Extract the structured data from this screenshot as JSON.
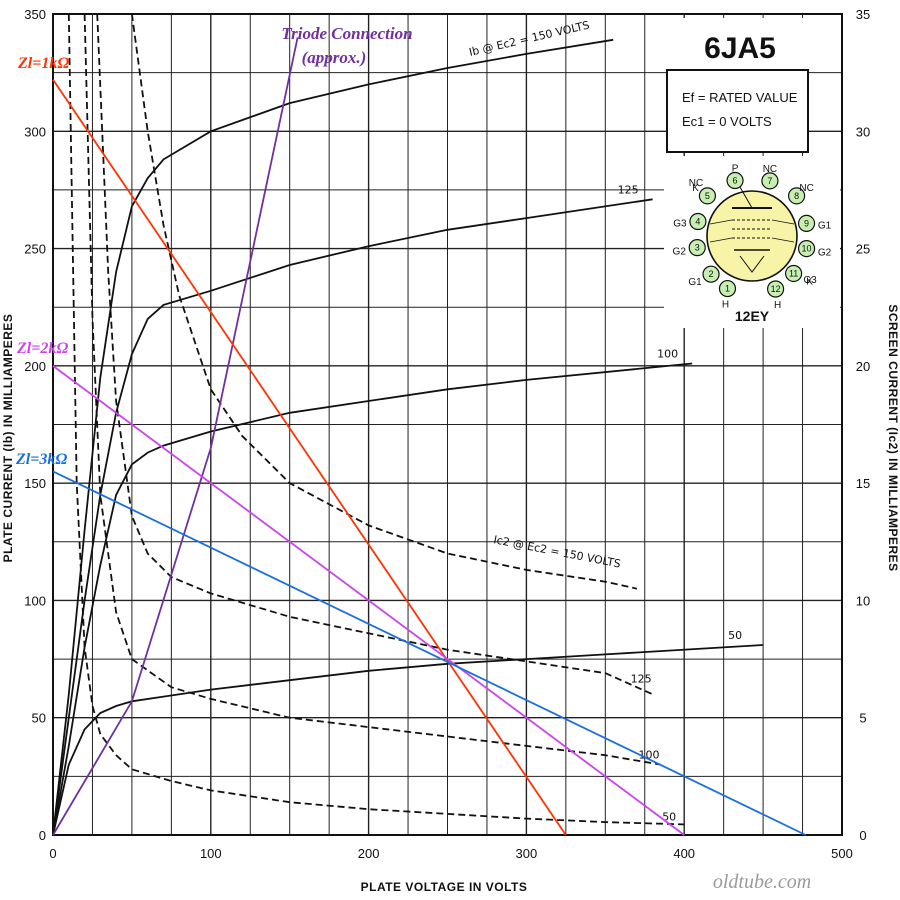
{
  "chart_data": {
    "type": "line",
    "title": "6JA5",
    "xlabel": "PLATE VOLTAGE IN VOLTS",
    "ylabel": "PLATE CURRENT (Ib) IN MILLIAMPERES",
    "y2label": "SCREEN CURRENT (Ic2) IN MILLIAMPERES",
    "xlim": [
      0,
      500
    ],
    "ylim": [
      0,
      350
    ],
    "y2lim": [
      0,
      35
    ],
    "x_ticks": [
      "0",
      "100",
      "200",
      "300",
      "400",
      "500"
    ],
    "y_ticks": [
      "0",
      "50",
      "100",
      "150",
      "200",
      "250",
      "300",
      "350"
    ],
    "y2_ticks": [
      "0",
      "5",
      "10",
      "15",
      "20",
      "25",
      "30",
      "35"
    ],
    "grid": true,
    "conditions": [
      "Ef = RATED VALUE",
      "Ec1 = 0 VOLTS"
    ],
    "base": {
      "code": "12EY",
      "pins": [
        {
          "num": "1",
          "name": "H"
        },
        {
          "num": "2",
          "name": "G1"
        },
        {
          "num": "3",
          "name": "G2"
        },
        {
          "num": "4",
          "name": "G3"
        },
        {
          "num": "5",
          "name": "K"
        },
        {
          "num": "6",
          "name": "P"
        },
        {
          "num": "7",
          "name": "NC"
        },
        {
          "num": "8",
          "name": "NC"
        },
        {
          "num": "9",
          "name": "G1"
        },
        {
          "num": "10",
          "name": "G2"
        },
        {
          "num": "11",
          "name": "K"
        },
        {
          "num": "12",
          "name": "H"
        }
      ],
      "extra_labels": [
        "NC",
        "G3"
      ]
    },
    "plate_curves": [
      {
        "label": "Ib @ Ec2 = 150 VOLTS",
        "x": [
          0,
          10,
          20,
          30,
          40,
          50,
          60,
          70,
          100,
          150,
          200,
          250,
          300,
          355
        ],
        "y": [
          0,
          60,
          130,
          195,
          240,
          268,
          280,
          288,
          300,
          312,
          320,
          327,
          333,
          339
        ]
      },
      {
        "label": "125",
        "x": [
          0,
          10,
          20,
          30,
          40,
          50,
          60,
          70,
          100,
          150,
          200,
          250,
          300,
          380
        ],
        "y": [
          0,
          50,
          100,
          145,
          180,
          205,
          220,
          226,
          232,
          243,
          251,
          258,
          263,
          271
        ]
      },
      {
        "label": "100",
        "x": [
          0,
          10,
          20,
          30,
          40,
          50,
          60,
          70,
          100,
          150,
          200,
          250,
          300,
          405
        ],
        "y": [
          0,
          38,
          80,
          115,
          145,
          158,
          163,
          166,
          172,
          180,
          185,
          190,
          194,
          201
        ]
      },
      {
        "label": "50",
        "x": [
          0,
          10,
          20,
          30,
          40,
          50,
          70,
          100,
          150,
          200,
          250,
          300,
          350,
          450
        ],
        "y": [
          0,
          30,
          45,
          52,
          55,
          57,
          59,
          62,
          66,
          70,
          73,
          75,
          77,
          81
        ]
      }
    ],
    "screen_curves": [
      {
        "label": "Ic2 @ Ec2 = 150 VOLTS",
        "x": [
          50,
          60,
          70,
          80,
          90,
          100,
          120,
          150,
          200,
          250,
          300,
          350,
          370
        ],
        "y": [
          35,
          30,
          26,
          23,
          21,
          19,
          17,
          15,
          13.2,
          12,
          11.3,
          10.8,
          10.5
        ]
      },
      {
        "label": "125",
        "x": [
          28,
          35,
          40,
          50,
          60,
          75,
          100,
          150,
          200,
          250,
          300,
          350,
          380
        ],
        "y": [
          35,
          24,
          18.5,
          13.6,
          12,
          11,
          10.3,
          9.3,
          8.6,
          7.9,
          7.4,
          6.9,
          6
        ]
      },
      {
        "label": "100",
        "x": [
          20,
          25,
          30,
          40,
          50,
          75,
          100,
          150,
          200,
          250,
          300,
          350,
          385
        ],
        "y": [
          35,
          22,
          14.5,
          9.5,
          7.5,
          6.3,
          5.8,
          5,
          4.6,
          4.2,
          3.8,
          3.4,
          3
        ]
      },
      {
        "label": "50",
        "x": [
          10,
          15,
          20,
          25,
          30,
          40,
          50,
          75,
          100,
          150,
          200,
          250,
          300,
          350,
          400
        ],
        "y": [
          35,
          15,
          8,
          5.5,
          4.3,
          3.4,
          2.8,
          2.3,
          1.9,
          1.4,
          1.1,
          0.9,
          0.7,
          0.55,
          0.45
        ]
      }
    ],
    "load_lines": [
      {
        "label": "Zl=1kΩ",
        "color": "#ff3300",
        "x": [
          0,
          325
        ],
        "y": [
          322,
          0
        ]
      },
      {
        "label": "Zl=2kΩ",
        "color": "#cc44ee",
        "x": [
          0,
          400
        ],
        "y": [
          200,
          0
        ]
      },
      {
        "label": "Zl=3kΩ",
        "color": "#1a6fe0",
        "x": [
          0,
          477
        ],
        "y": [
          155,
          0
        ]
      }
    ],
    "triode_line": {
      "label": "Triode Connection",
      "label2": "(approx.)",
      "color": "#7030a0",
      "x": [
        0,
        50,
        100,
        155
      ],
      "y": [
        0,
        57,
        165,
        340
      ]
    }
  },
  "watermark": "oldtube.com"
}
